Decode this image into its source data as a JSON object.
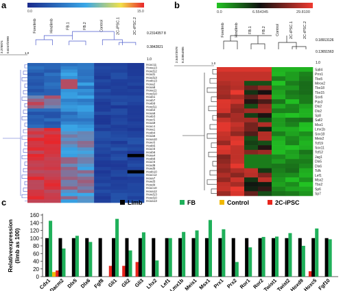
{
  "panels": {
    "a": "a",
    "b": "b",
    "c": "c"
  },
  "colors": {
    "heat_a_low": "#1a2a8c",
    "heat_a_mid": "#3aa8e8",
    "heat_a_high": "#e8262a",
    "heat_b_low": "#22c423",
    "heat_b_mid": "#101010",
    "heat_b_high": "#f03a30",
    "limb": "#000000",
    "fb": "#1fb05a",
    "control": "#f0b800",
    "ipsc": "#e8241c"
  },
  "heatmap_a": {
    "scale_min": "0.0",
    "scale_max": "15.0",
    "tree_labels": [
      "3.376874",
      "0.6247/2990",
      "1.0",
      "0.2314357 8",
      "0.3842821",
      "1.0"
    ],
    "columns": [
      "Forelimb",
      "Hindlimb",
      "FB.1",
      "FB.2",
      "Control",
      "2C-iPSC.1",
      "2C-iPSC.2"
    ],
    "rows": [
      "Hoxc11",
      "Hoxa13",
      "Hoxd12",
      "Hoxd1",
      "Hoxd13",
      "Hoxb13",
      "Hoxa2",
      "Hoxa8",
      "Hoxa11",
      "Hoxd10",
      "Hoxb1",
      "Hoxb7",
      "Hoxb9",
      "Hoxd11",
      "Hoxb2",
      "Hoxa6",
      "Hoxb3",
      "Hoxc5",
      "Hoxa9",
      "Hoxc4",
      "Hoxa1",
      "Hoxb4",
      "Hoxa5",
      "Hoxa10",
      "Hoxc6",
      "Hoxb5",
      "Hoxc8",
      "Hoxb6",
      "Hoxa4",
      "Hoxb8",
      "Hoxc9",
      "Hoxd8",
      "Hoxd9",
      "Hoxb10",
      "Hoxc12",
      "Hoxa7",
      "Hoxd3",
      "Hoxd4",
      "Hoxc10",
      "Hoxa12",
      "Hoxd13",
      "Hoxd10",
      "Hoxa13"
    ]
  },
  "heatmap_b": {
    "scale_min": "0.0",
    "scale_mid": "6.554345",
    "scale_max": "29.8100",
    "tree_labels": [
      "2.54573978",
      "0.22854905",
      "1.0",
      "0.18913126",
      "0.13651563",
      "1.0"
    ],
    "columns": [
      "Forelimb",
      "Hindlimb",
      "FB.1",
      "FB.2",
      "Control",
      "2C-iPSC.1",
      "2C-iPSC.2"
    ],
    "rows": [
      "Sall4",
      "Prrx1",
      "Tbx5",
      "Meox2",
      "Tbx18",
      "Tbx15",
      "Sox6",
      "Pax3",
      "Dlx2",
      "Dlx2",
      "Sp8",
      "Sall2",
      "Msx1",
      "Lmx1b",
      "Sox18",
      "Meis2",
      "Tcf19",
      "Sox11",
      "Tcf12",
      "Jag1",
      "Dlx5",
      "Dlx6",
      "Tcfk",
      "Lef1",
      "Msx2",
      "Tbx2",
      "Sp6",
      "Sp7"
    ]
  },
  "chart_data": {
    "type": "bar",
    "ylabel": "Relativeexpression (limb as 100)",
    "ylim": [
      0,
      160
    ],
    "yticks": [
      0,
      20,
      40,
      60,
      80,
      100,
      120,
      140,
      160
    ],
    "legend_position": "top",
    "categories": [
      "Cdx1",
      "Dacm2",
      "Dlx5",
      "Dlx6",
      "Fgf8",
      "Gli1",
      "Gli2",
      "Gli3",
      "Lhx2",
      "Lef1",
      "Lmx1b",
      "Meis1",
      "Msx1",
      "Prx1",
      "Prx2",
      "Ror1",
      "Ror2",
      "Twist1",
      "Twist2",
      "Hoxd9",
      "Hoxc5",
      "Fgf10"
    ],
    "series": [
      {
        "name": "Limb",
        "color": "#000000",
        "values": [
          100,
          100,
          100,
          100,
          100,
          100,
          100,
          100,
          100,
          100,
          100,
          100,
          100,
          100,
          100,
          100,
          100,
          100,
          100,
          100,
          100,
          100
        ]
      },
      {
        "name": "FB",
        "color": "#1fb05a",
        "values": [
          145,
          73,
          106,
          90,
          0,
          150,
          68,
          115,
          42,
          100,
          116,
          120,
          147,
          123,
          38,
          76,
          103,
          104,
          113,
          80,
          125,
          97
        ]
      },
      {
        "name": "Control",
        "color": "#f0b800",
        "values": [
          12,
          0,
          0,
          0,
          0,
          0,
          0,
          0,
          0,
          0,
          0,
          0,
          0,
          0,
          0,
          0,
          0,
          0,
          0,
          0,
          0,
          0
        ]
      },
      {
        "name": "2C-iPSC",
        "color": "#e8241c",
        "values": [
          16,
          0,
          0,
          0,
          28,
          28,
          38,
          0,
          0,
          0,
          0,
          0,
          0,
          0,
          0,
          0,
          0,
          0,
          0,
          14,
          0,
          0
        ]
      }
    ]
  }
}
